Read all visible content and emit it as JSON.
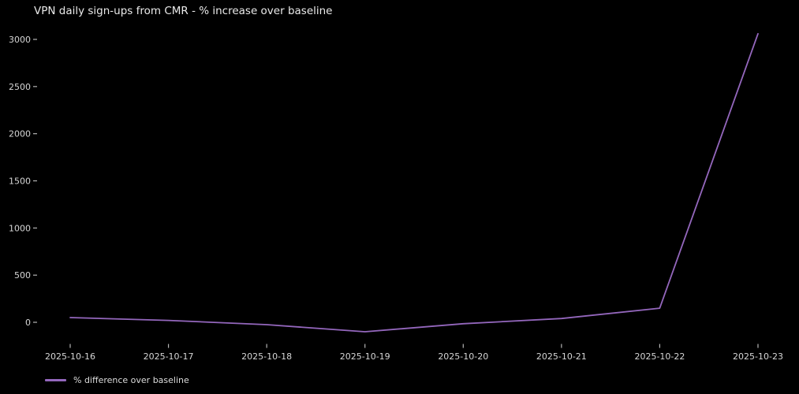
{
  "chart_data": {
    "type": "line",
    "title": "VPN daily sign-ups from CMR - % increase over baseline",
    "x": [
      "2025-10-16",
      "2025-10-17",
      "2025-10-18",
      "2025-10-19",
      "2025-10-20",
      "2025-10-21",
      "2025-10-22",
      "2025-10-23"
    ],
    "series": [
      {
        "name": "% difference over baseline",
        "values": [
          50,
          20,
          -25,
          -100,
          -15,
          40,
          150,
          3060
        ],
        "color": "#9467bd"
      }
    ],
    "xlabel": "",
    "ylabel": "",
    "yticks": [
      0,
      500,
      1000,
      1500,
      2000,
      2500,
      3000
    ],
    "ylim": [
      -265,
      3220
    ],
    "grid": false,
    "legend_position": "lower-left-outside",
    "background_color": "#000000",
    "title_color": "#eaeaea",
    "text_color": "#d6d6d6",
    "tick_color": "#b5b5b5"
  },
  "legend": {
    "label": "% difference over baseline",
    "swatch_color": "#9467bd"
  }
}
